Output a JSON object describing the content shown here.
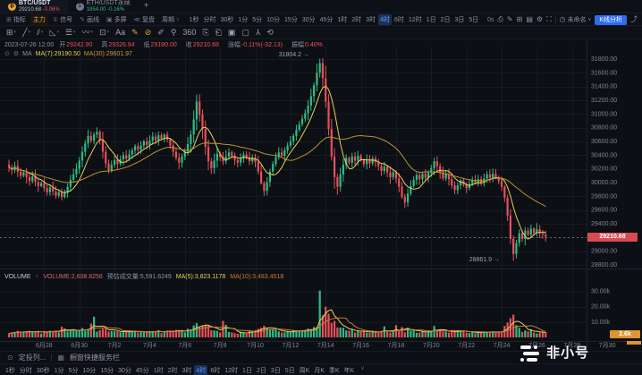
{
  "header": {
    "tabs": [
      {
        "symbol": "BTC/USDT",
        "price": "29210.68",
        "change": "-0.06%"
      },
      {
        "symbol": "ETH/USDT永续",
        "price": "1854.00",
        "change": "-0.16%"
      }
    ],
    "add_tab": "+"
  },
  "toolbar2": {
    "left": [
      {
        "name": "indicators",
        "icon": "⊞",
        "label": "指标"
      },
      {
        "name": "main-force",
        "icon": "",
        "label": "主力",
        "active": true
      },
      {
        "name": "signals",
        "icon": "①",
        "label": "信号"
      },
      {
        "name": "drawing",
        "icon": "✎",
        "label": "画线"
      },
      {
        "name": "multi-screen",
        "icon": "▣",
        "label": "多屏"
      },
      {
        "name": "replay",
        "icon": "≪",
        "label": "复盘"
      },
      {
        "name": "period",
        "icon": "",
        "label": "周期",
        "caret": true
      }
    ],
    "timeframes": [
      "1秒",
      "分时",
      "30秒",
      "1分",
      "5分",
      "10分",
      "15分",
      "30分",
      "45分",
      "1时",
      "2时",
      "3时",
      "4时",
      "6时",
      "12时",
      "1日",
      "2日",
      "3日",
      "5日",
      "周K",
      "月K",
      "季K",
      "年K"
    ],
    "active_timeframe": "4时",
    "countdown": "0s",
    "right_icons": [
      {
        "name": "camera-icon",
        "glyph": "⎙"
      },
      {
        "name": "brush-icon",
        "glyph": "✎"
      },
      {
        "name": "layout-icon",
        "glyph": "⊞"
      },
      {
        "name": "panels-icon",
        "glyph": "▤"
      },
      {
        "name": "settings-icon",
        "glyph": "⚙"
      },
      {
        "name": "fullscreen-icon",
        "glyph": "⛶"
      }
    ],
    "alarm_icon": "◷",
    "layout_name": "未命名",
    "caret": "∨",
    "analyze_button": "K线分析",
    "share_icon": "⤴"
  },
  "draw_toolbar": {
    "icons": [
      {
        "name": "cursor-tool-icon",
        "glyph": "⊞",
        "caret": true
      },
      {
        "name": "trend-line-tool-icon",
        "glyph": "╱",
        "caret": true
      },
      {
        "name": "channel-tool-icon",
        "glyph": "⫽",
        "caret": true
      },
      {
        "name": "shape-tool-icon",
        "glyph": "◺",
        "caret": true
      },
      {
        "name": "fib-tool-icon",
        "glyph": "☰",
        "caret": true
      },
      {
        "name": "wave-tool-icon",
        "glyph": "〰",
        "caret": true
      },
      {
        "name": "pattern-tool-icon",
        "glyph": "⊡",
        "caret": true
      },
      {
        "name": "text-tool-icon",
        "glyph": "Aa",
        "caret": false
      },
      {
        "name": "brush-tool-icon",
        "glyph": "✎",
        "active": true
      },
      {
        "name": "eraser-tool-icon",
        "glyph": "⊘",
        "active": true
      },
      {
        "name": "pencil-tool-icon",
        "glyph": "✐"
      },
      {
        "name": "anchor-tool-icon",
        "glyph": "⚲"
      },
      {
        "name": "degree360-tool-icon",
        "glyph": "360"
      },
      {
        "name": "clipboard-icon",
        "glyph": "⎘"
      },
      {
        "name": "notes-icon",
        "glyph": "⎗"
      },
      {
        "name": "chart-box-icon",
        "glyph": "▣"
      },
      {
        "name": "empty-box-icon",
        "glyph": "▢"
      },
      {
        "name": "funnel-icon",
        "glyph": "⅄"
      },
      {
        "name": "refresh-icon",
        "glyph": "⟲"
      }
    ]
  },
  "ohlc": {
    "datetime": "2023-07-26 12:00",
    "open_label": "开",
    "open": "29242.90",
    "high_label": "高",
    "high": "29326.94",
    "low_label": "低",
    "low": "29180.00",
    "close_label": "收",
    "close": "29210.68",
    "change_label": "涨幅",
    "change": "-0.11%(-32.13)",
    "amplitude_label": "振幅",
    "amplitude": "0.40%"
  },
  "ma_legend": {
    "eye_icon": "⊙",
    "gear_icon": "⚙",
    "title": "MA",
    "ma7": "MA(7):29190.50",
    "ma30": "MA(30):29601.97"
  },
  "volume_legend": {
    "title": "VOLUME",
    "caret": "∨",
    "current": "VOLUME:2,608.8256",
    "estimate": "预估成交量:5,591.6249",
    "ma5": "MA(5):3,823.1178",
    "ma10": "MA(10):3,483.4518"
  },
  "annotations": {
    "high": "31804.2",
    "low": "28861.9",
    "arrow": "→"
  },
  "price_badge": "29210.68",
  "volume_badge": "2.6k",
  "footer": {
    "tab1_icon": "⊙",
    "tab1": "定投列...",
    "tab2_icon": "▦",
    "tab2": "橱窗快捷服务栏",
    "caret": "∨"
  },
  "watermark": "非小号",
  "colors": {
    "up": "#2ebd85",
    "down": "#e8505b",
    "ma7": "#e8cf58",
    "ma30": "#b99334",
    "vol_ma5": "#e8cf58",
    "vol_ma10": "#cf7a36",
    "grid": "#151a23",
    "axis_text": "#7e8798",
    "border": "#1d242f",
    "dashed_line": "#8b93a6",
    "bg": "#0c0f14",
    "badge_red": "#d84b54",
    "badge_orange": "#dd9530",
    "accent_blue": "#2e6bf0"
  },
  "chart_data": {
    "type": "candlestick",
    "symbol": "BTC/USDT",
    "interval": "4时",
    "y_ticks": [
      28800,
      29000,
      29200,
      29400,
      29600,
      29800,
      30000,
      30200,
      30400,
      30600,
      30800,
      31000,
      31200,
      31400,
      31600,
      31800
    ],
    "volume_ticks": [
      {
        "v": 10000,
        "label": "10.00k"
      },
      {
        "v": 20000,
        "label": "20.00k"
      },
      {
        "v": 30000,
        "label": "30.00k"
      }
    ],
    "x_labels": [
      "6月28",
      "6月30",
      "7月2",
      "7月4",
      "7月6",
      "7月8",
      "7月10",
      "7月12",
      "7月14",
      "7月16",
      "7月18",
      "7月20",
      "7月22",
      "7月24",
      "7月26",
      "7月28",
      "7月30"
    ],
    "x_label_start_slot": 12,
    "x_label_step_slots": 12,
    "slots_total": 200,
    "candles_per_day": 6,
    "first_open": 30260,
    "closes": [
      30220,
      30180,
      30240,
      30160,
      30100,
      30150,
      30080,
      30020,
      30090,
      30010,
      29950,
      29990,
      29920,
      29860,
      29930,
      29870,
      29810,
      29860,
      29790,
      29850,
      29940,
      30040,
      30120,
      30200,
      30320,
      30450,
      30570,
      30680,
      30610,
      30700,
      30740,
      30620,
      30450,
      30280,
      30180,
      30260,
      30330,
      30270,
      30340,
      30400,
      30350,
      30410,
      30470,
      30530,
      30480,
      30540,
      30600,
      30550,
      30610,
      30670,
      30620,
      30690,
      30640,
      30700,
      30630,
      30540,
      30450,
      30360,
      30290,
      30380,
      30450,
      30560,
      30700,
      30920,
      31180,
      30990,
      30780,
      30520,
      30310,
      30210,
      30320,
      30420,
      30370,
      30310,
      30380,
      30440,
      30390,
      30330,
      30290,
      30350,
      30410,
      30370,
      30310,
      30370,
      30300,
      30160,
      29990,
      29880,
      30010,
      30160,
      30270,
      30370,
      30440,
      30390,
      30470,
      30540,
      30600,
      30680,
      30770,
      30850,
      30930,
      31010,
      31120,
      31260,
      31420,
      31600,
      31740,
      31520,
      31180,
      30780,
      30380,
      30080,
      29940,
      30120,
      30260,
      30360,
      30290,
      30380,
      30320,
      30390,
      30330,
      30270,
      30340,
      30280,
      30350,
      30300,
      30240,
      30170,
      30230,
      30150,
      30080,
      30150,
      30060,
      29940,
      29790,
      29710,
      29840,
      29950,
      30040,
      30110,
      30050,
      30130,
      30070,
      30140,
      30210,
      30310,
      30240,
      30150,
      30060,
      30120,
      30050,
      29960,
      29890,
      29960,
      30030,
      29970,
      29920,
      29980,
      30040,
      29990,
      30050,
      30000,
      30060,
      30120,
      30070,
      30130,
      30080,
      30020,
      29940,
      29780,
      29520,
      29180,
      28960,
      29120,
      29260,
      29180,
      29300,
      29240,
      29330,
      29270,
      29320,
      29260,
      29243,
      29210.68
    ],
    "wick_overrides": {
      "106": {
        "high": 31804.2
      },
      "172": {
        "low": 28861.9
      }
    },
    "volume_overrides": {
      "18": 7000,
      "19": 5800,
      "28": 9000,
      "29": 13500,
      "73": 10800,
      "74": 8200,
      "87": 7600,
      "88": 6400,
      "106": 30500,
      "107": 14500,
      "108": 20000,
      "109": 15500,
      "110": 9500,
      "128": 7200,
      "132": 8000,
      "145": 7500,
      "169": 7500,
      "170": 9800,
      "171": 12500,
      "172": 14800,
      "173": 8000
    },
    "last_price": 29210.68,
    "price_axis": {
      "min": 28800,
      "max": 31800
    },
    "volume_max": 35000,
    "ma_periods": [
      7,
      30
    ],
    "volume_ma_periods": [
      5,
      10
    ]
  }
}
